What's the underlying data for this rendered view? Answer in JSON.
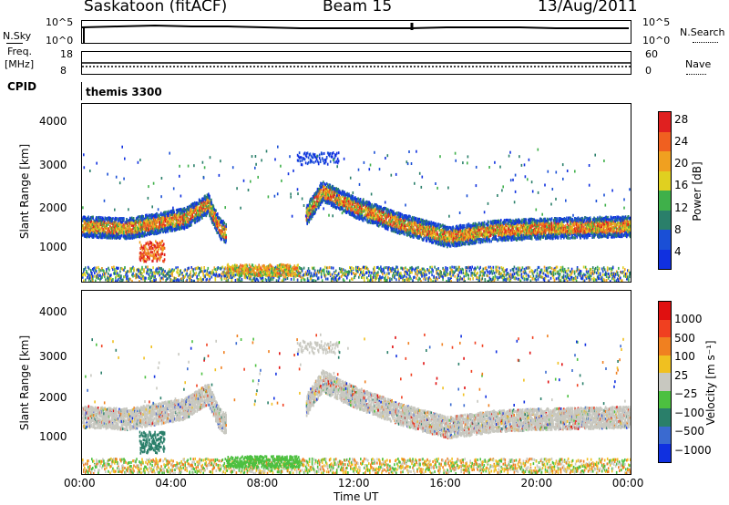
{
  "header": {
    "station": "Saskatoon (fitACF)",
    "beam": "Beam 15",
    "date": "13/Aug/2011"
  },
  "nsky": {
    "label": "N.Sky",
    "top_tick": "10^5",
    "bottom_tick": "10^0",
    "right_label": "N.Search",
    "right_top_tick": "10^5",
    "right_bottom_tick": "10^0"
  },
  "freq": {
    "label_line1": "Freq.",
    "label_line2": "[MHz]",
    "top_tick": "18",
    "bottom_tick": "8",
    "right_label": "Nave",
    "right_top_tick": "60",
    "right_bottom_tick": "0"
  },
  "cpid": {
    "label": "CPID",
    "value": "themis 3300"
  },
  "colors": {
    "power": [
      "#1030e0",
      "#1a4fd6",
      "#2a7f6a",
      "#3fb04a",
      "#e0d020",
      "#f0a020",
      "#f06020",
      "#e02020"
    ],
    "velocity": [
      "#1030e0",
      "#3a6ad0",
      "#2a7f6a",
      "#4cc040",
      "#c8c8c0",
      "#f0c020",
      "#f08020",
      "#f04020",
      "#e01010"
    ]
  },
  "chart_data": [
    {
      "type": "heatmap",
      "name_label": "Power [dB]",
      "ylabel": "Slant Range [km]",
      "xlabel": "",
      "ylim": [
        180,
        4500
      ],
      "xlim": [
        0,
        24
      ],
      "yticks": [
        "1000",
        "2000",
        "3000",
        "4000"
      ],
      "colorbar_ticks": [
        "4",
        "8",
        "12",
        "16",
        "20",
        "24",
        "28"
      ],
      "colorbar_range": [
        0,
        30
      ]
    },
    {
      "type": "heatmap",
      "name_label": "Velocity [m s⁻¹]",
      "ylabel": "Slant Range [km]",
      "xlabel": "Time UT",
      "ylim": [
        180,
        4500
      ],
      "xlim": [
        0,
        24
      ],
      "yticks": [
        "1000",
        "2000",
        "3000",
        "4000"
      ],
      "xticks": [
        "00:00",
        "04:00",
        "08:00",
        "12:00",
        "16:00",
        "20:00",
        "00:00"
      ],
      "colorbar_ticks": [
        "1000",
        "500",
        "100",
        "25",
        "−25",
        "−100",
        "−500",
        "−1000"
      ]
    }
  ]
}
